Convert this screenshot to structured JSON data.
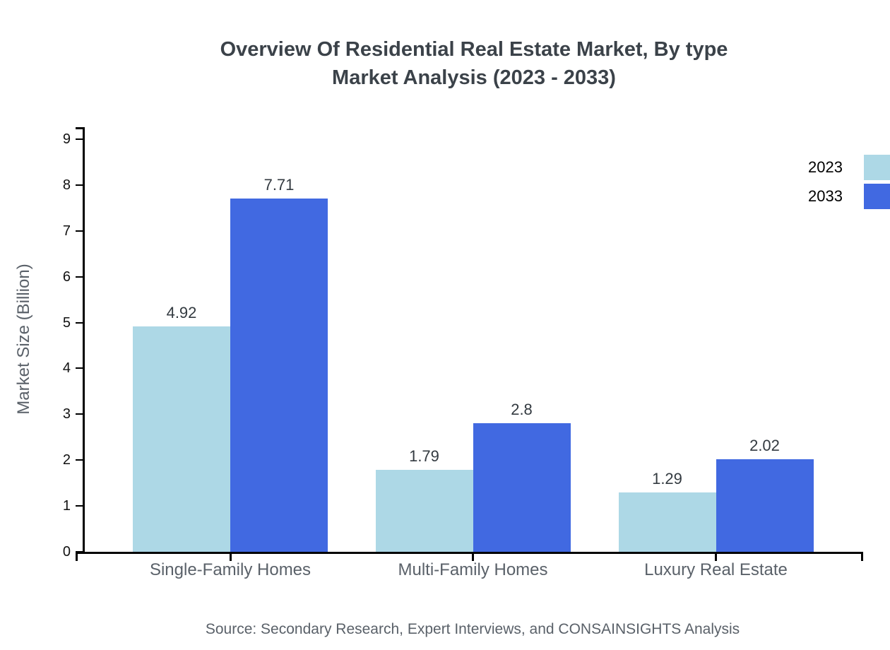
{
  "title": {
    "line1": "Overview Of Residential Real Estate Market, By type",
    "line2": "Market Analysis (2023 - 2033)"
  },
  "axes": {
    "ylabel": "Market Size (Billion)",
    "y_ticks": [
      0,
      1,
      2,
      3,
      4,
      5,
      6,
      7,
      8,
      9
    ]
  },
  "legend": {
    "position": "top-right",
    "items": [
      {
        "label": "2023",
        "color": "#ADD8E6"
      },
      {
        "label": "2033",
        "color": "#4169E1"
      }
    ]
  },
  "source_note": "Source: Secondary Research, Expert Interviews, and CONSAINSIGHTS Analysis",
  "colors": {
    "series_2023": "#ADD8E6",
    "series_2033": "#4169E1",
    "axis": "#000000",
    "title_text": "#3b4249",
    "muted_text": "#5a6169"
  },
  "chart_data": {
    "type": "bar",
    "title": "Overview Of Residential Real Estate Market, By type Market Analysis (2023 - 2033)",
    "categories": [
      "Single-Family Homes",
      "Multi-Family Homes",
      "Luxury Real Estate"
    ],
    "series": [
      {
        "name": "2023",
        "color": "#ADD8E6",
        "values": [
          4.92,
          1.79,
          1.29
        ]
      },
      {
        "name": "2033",
        "color": "#4169E1",
        "values": [
          7.71,
          2.8,
          2.02
        ]
      }
    ],
    "xlabel": "",
    "ylabel": "Market Size (Billion)",
    "ylim": [
      0,
      9
    ],
    "ytick_step": 1,
    "grid": false,
    "legend_position": "top-right",
    "value_labels": true
  }
}
